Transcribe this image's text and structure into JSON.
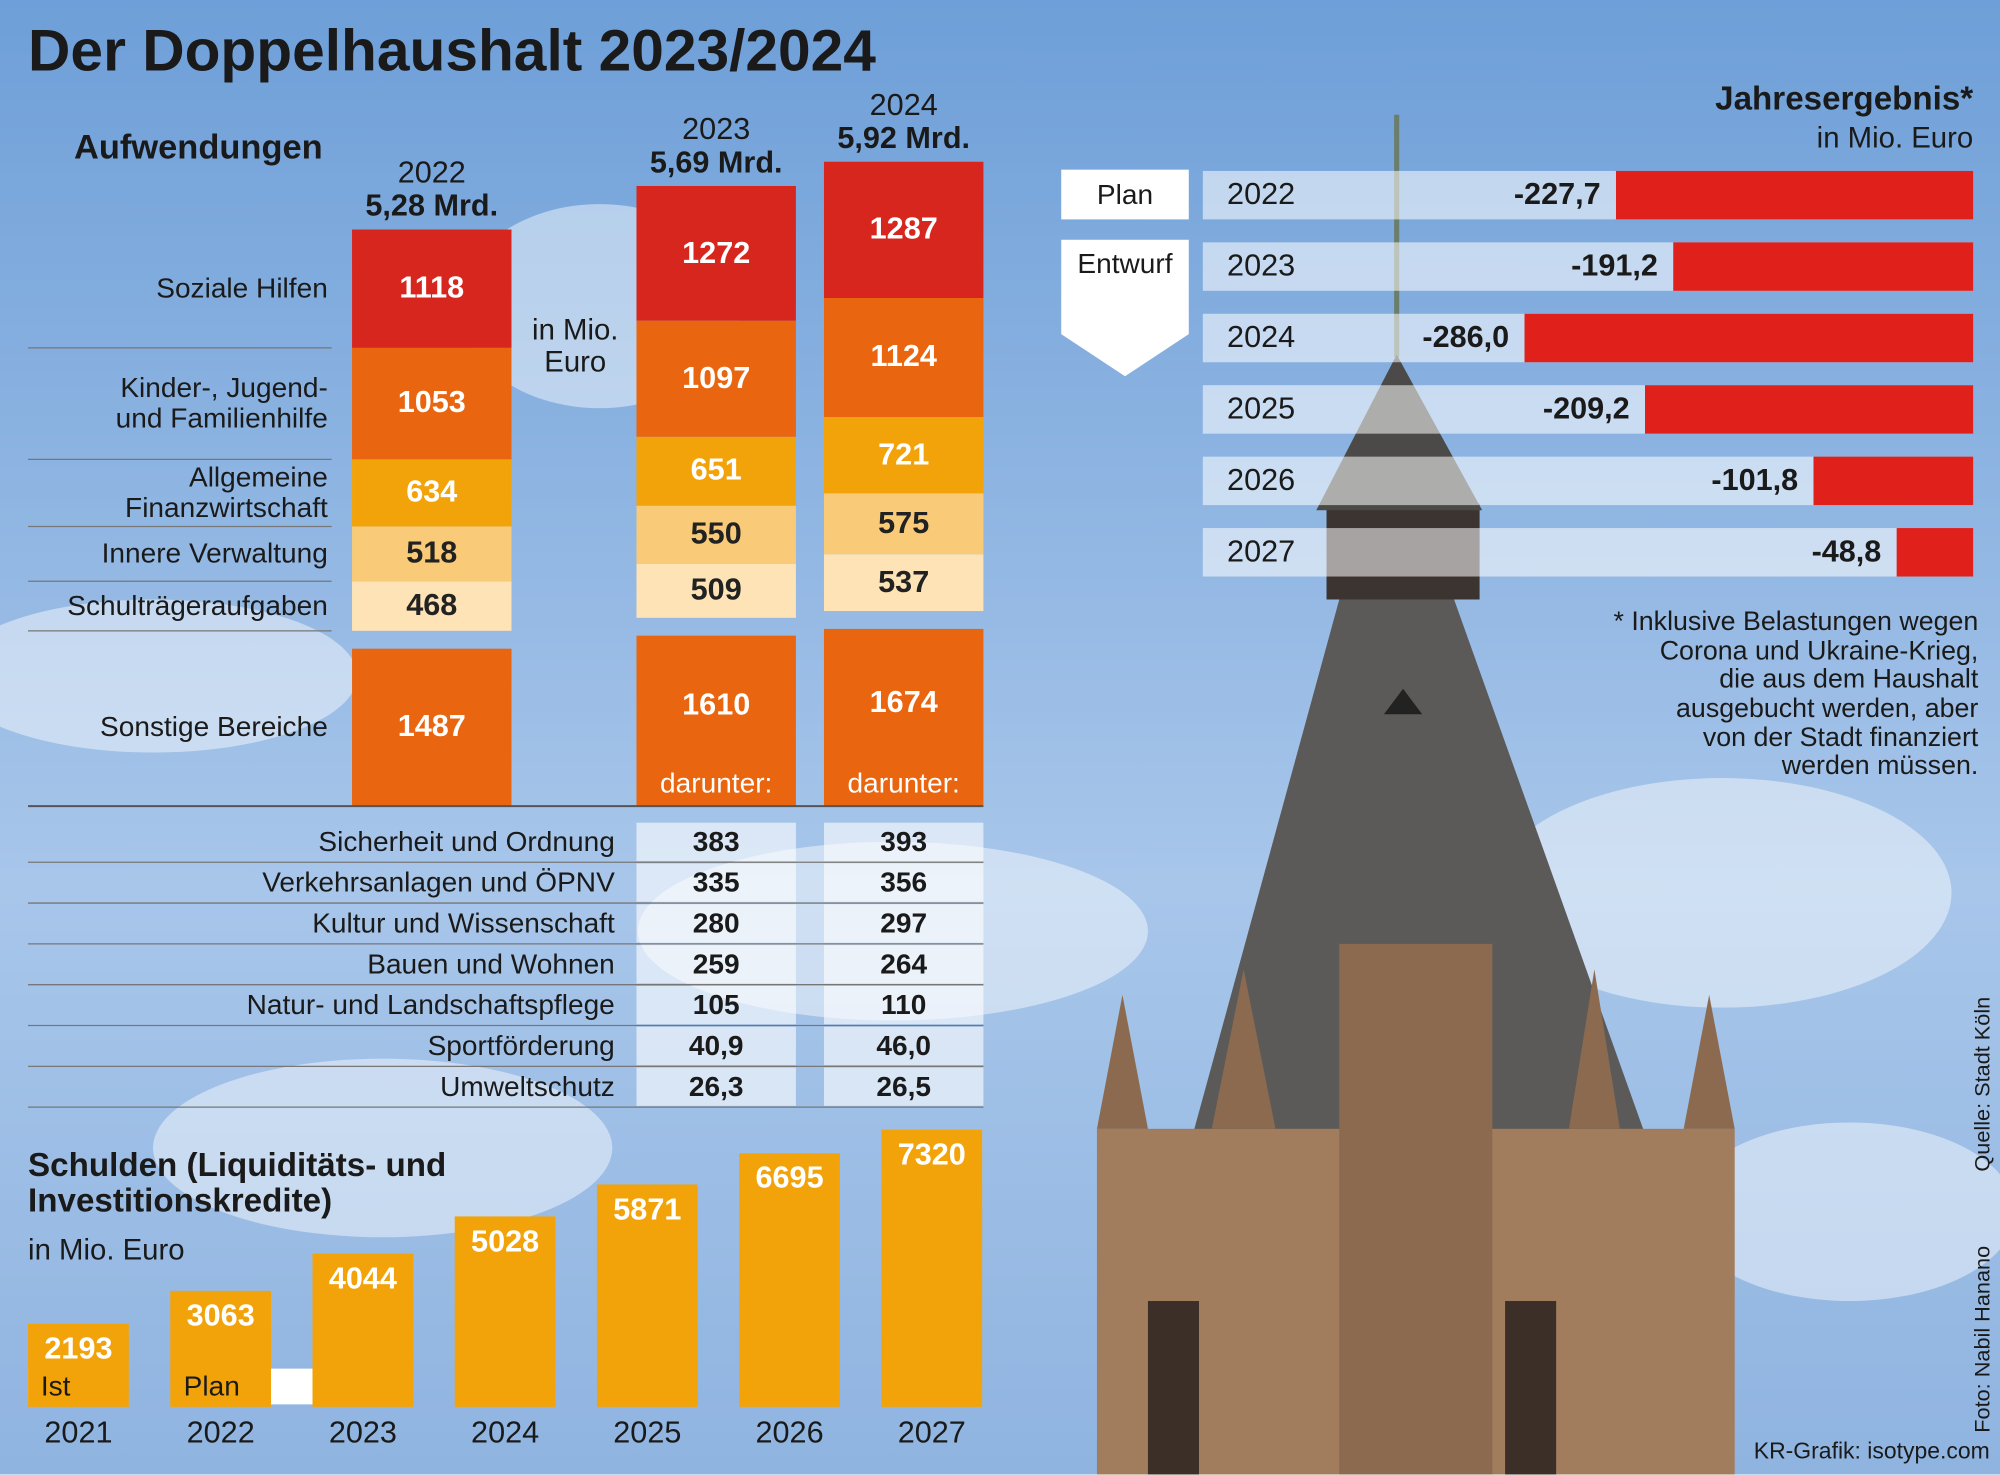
{
  "title": "Der Doppelhaushalt 2023/2024",
  "credits": {
    "source": "Quelle: Stadt Köln",
    "photo": "Foto: Nabil Hanano",
    "graphic": "KR-Grafik: isotype.com"
  },
  "chart_data": [
    {
      "type": "stacked_bar",
      "title": "Aufwendungen",
      "unit_label": "in Mio.\nEuro",
      "categories": [
        "2022",
        "2023",
        "2024"
      ],
      "category_totals": [
        "5,28 Mrd.",
        "5,69 Mrd.",
        "5,92 Mrd."
      ],
      "series": [
        {
          "name": "Soziale Hilfen",
          "color": "#d7261e",
          "values": [
            1118,
            1272,
            1287
          ]
        },
        {
          "name": "Kinder-, Jugend-\nund Familienhilfe",
          "color": "#e9650f",
          "values": [
            1053,
            1097,
            1124
          ]
        },
        {
          "name": "Allgemeine\nFinanzwirtschaft",
          "color": "#f3a30a",
          "values": [
            634,
            651,
            721
          ]
        },
        {
          "name": "Innere Verwaltung",
          "color": "#f9cb78",
          "values": [
            518,
            550,
            575
          ]
        },
        {
          "name": "Schulträgeraufgaben",
          "color": "#fde3b5",
          "values": [
            468,
            509,
            537
          ]
        },
        {
          "name": "Sonstige Bereiche",
          "color": "#e9650f",
          "values": [
            1487,
            1610,
            1674
          ]
        }
      ],
      "breakdown_label": "darunter:",
      "breakdown": [
        {
          "name": "Sicherheit und Ordnung",
          "values": [
            383,
            393
          ]
        },
        {
          "name": "Verkehrsanlagen und ÖPNV",
          "values": [
            335,
            356
          ]
        },
        {
          "name": "Kultur und Wissenschaft",
          "values": [
            280,
            297
          ]
        },
        {
          "name": "Bauen und Wohnen",
          "values": [
            259,
            264
          ]
        },
        {
          "name": "Natur- und Landschaftspflege",
          "values": [
            105,
            110
          ]
        },
        {
          "name": "Sportförderung",
          "values": [
            40.9,
            46.0
          ],
          "value_labels": [
            "40,9",
            "46,0"
          ]
        },
        {
          "name": "Umweltschutz",
          "values": [
            26.3,
            26.5
          ],
          "value_labels": [
            "26,3",
            "26,5"
          ]
        }
      ]
    },
    {
      "type": "bar",
      "title": "Schulden (Liquiditäts- und\nInvestitionskredite)",
      "subtitle": "in Mio. Euro",
      "categories": [
        "2021",
        "2022",
        "2023",
        "2024",
        "2025",
        "2026",
        "2027"
      ],
      "values": [
        2193,
        3063,
        4044,
        5028,
        5871,
        6695,
        7320
      ],
      "color": "#f3a30a",
      "annotations": [
        "Ist",
        "Plan"
      ]
    },
    {
      "type": "hbar",
      "title": "Jahresergebnis*",
      "subtitle": "in Mio. Euro",
      "categories": [
        "2022",
        "2023",
        "2024",
        "2025",
        "2026",
        "2027"
      ],
      "values": [
        -227.7,
        -191.2,
        -286.0,
        -209.2,
        -101.8,
        -48.8
      ],
      "value_labels": [
        "-227,7",
        "-191,2",
        "-286,0",
        "-209,2",
        "-101,8",
        "-48,8"
      ],
      "color": "#e0201b",
      "annotations": [
        "Plan",
        "Entwurf"
      ],
      "footnote": "* Inklusive Belastungen wegen\nCorona und Ukraine-Krieg,\ndie aus dem Haushalt\nausgebucht werden, aber\nvon der Stadt finanziert\nwerden müssen."
    }
  ]
}
